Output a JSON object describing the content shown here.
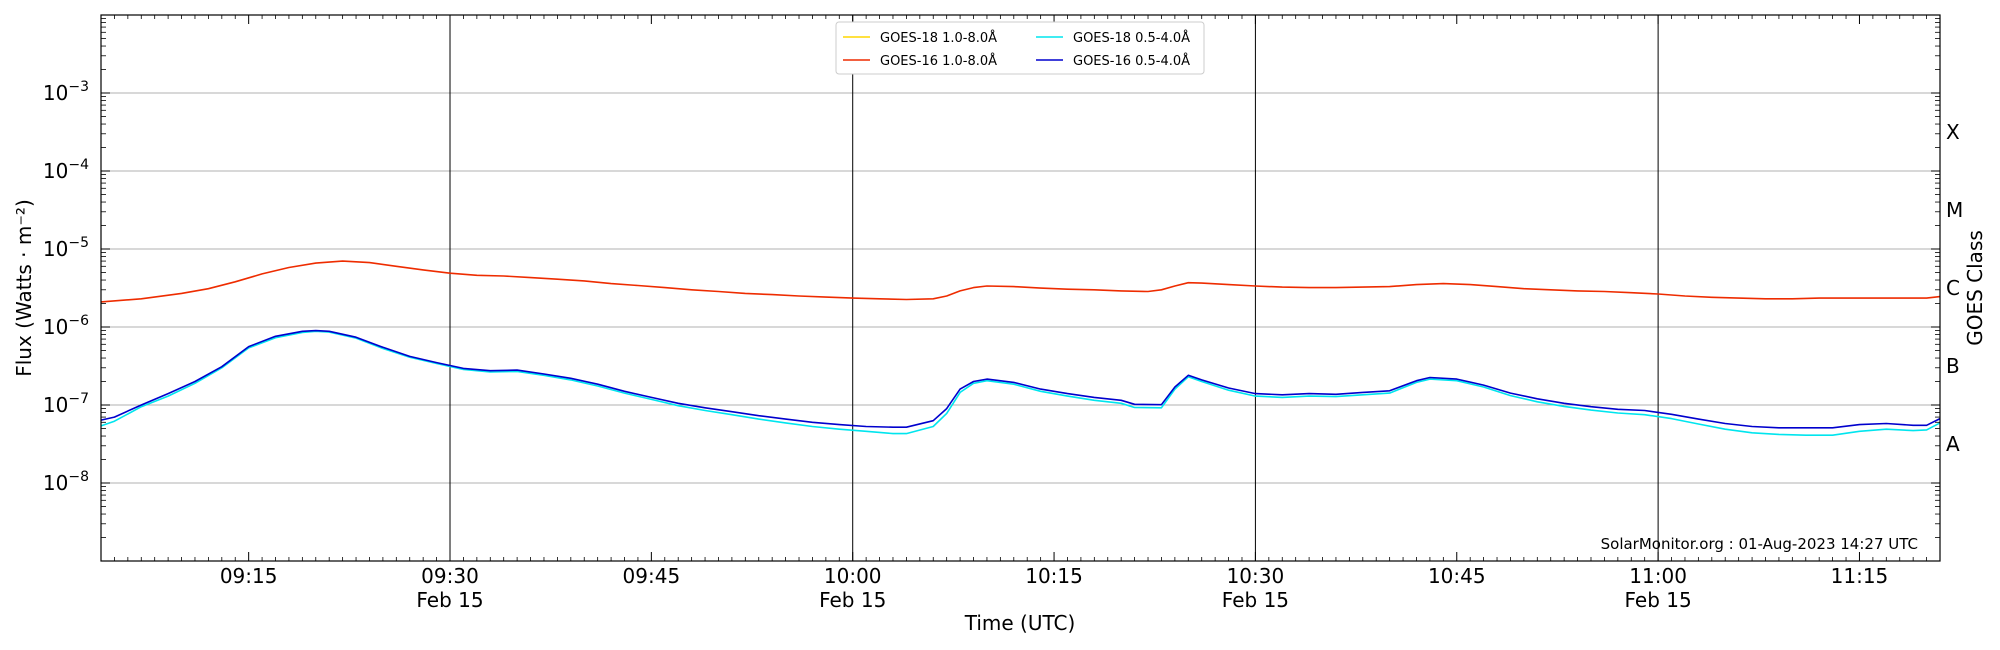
{
  "chart_data": {
    "type": "line",
    "ylabel": "Flux (Watts · m⁻²)",
    "xlabel": "Time (UTC)",
    "right_label": "GOES Class",
    "credit": "SolarMonitor.org : 01-Aug-2023 14:27 UTC",
    "y_scale": "log",
    "ylim": [
      1e-09,
      0.01
    ],
    "x_range_min": [
      544,
      681
    ],
    "y_ticks": [
      {
        "exp": -3,
        "label": "10",
        "sup": "−3"
      },
      {
        "exp": -4,
        "label": "10",
        "sup": "−4"
      },
      {
        "exp": -5,
        "label": "10",
        "sup": "−5"
      },
      {
        "exp": -6,
        "label": "10",
        "sup": "−6"
      },
      {
        "exp": -7,
        "label": "10",
        "sup": "−7"
      },
      {
        "exp": -8,
        "label": "10",
        "sup": "−8"
      }
    ],
    "x_ticks": [
      {
        "t": 555,
        "label": "09:15",
        "sub": ""
      },
      {
        "t": 570,
        "label": "09:30",
        "sub": "Feb 15"
      },
      {
        "t": 585,
        "label": "09:45",
        "sub": ""
      },
      {
        "t": 600,
        "label": "10:00",
        "sub": "Feb 15"
      },
      {
        "t": 615,
        "label": "10:15",
        "sub": ""
      },
      {
        "t": 630,
        "label": "10:30",
        "sub": "Feb 15"
      },
      {
        "t": 645,
        "label": "10:45",
        "sub": ""
      },
      {
        "t": 660,
        "label": "11:00",
        "sub": "Feb 15"
      },
      {
        "t": 675,
        "label": "11:15",
        "sub": ""
      }
    ],
    "vlines": [
      570,
      600,
      630,
      660
    ],
    "goes_classes": [
      {
        "label": "X",
        "exp": -3.5
      },
      {
        "label": "M",
        "exp": -4.5
      },
      {
        "label": "C",
        "exp": -5.5
      },
      {
        "label": "B",
        "exp": -6.5
      },
      {
        "label": "A",
        "exp": -7.5
      }
    ],
    "legend": [
      {
        "name": "GOES-18 1.0-8.0Å",
        "color": "#ffd700"
      },
      {
        "name": "GOES-18 0.5-4.0Å",
        "color": "#00e5ee"
      },
      {
        "name": "GOES-16 1.0-8.0Å",
        "color": "#ee2c00"
      },
      {
        "name": "GOES-16 0.5-4.0Å",
        "color": "#0000cd"
      }
    ],
    "series": [
      {
        "name": "GOES-16 1.0-8.0Å",
        "color": "#ee2c00",
        "x": [
          544,
          547,
          550,
          552,
          554,
          556,
          558,
          560,
          562,
          564,
          566,
          568,
          570,
          572,
          574,
          576,
          578,
          580,
          582,
          584,
          586,
          588,
          590,
          592,
          594,
          596,
          598,
          600,
          602,
          604,
          606,
          607,
          608,
          609,
          610,
          612,
          614,
          616,
          618,
          620,
          622,
          623,
          624,
          625,
          626,
          628,
          630,
          632,
          634,
          636,
          638,
          640,
          642,
          644,
          646,
          648,
          650,
          652,
          654,
          656,
          658,
          660,
          662,
          664,
          666,
          668,
          670,
          672,
          674,
          676,
          678,
          680,
          681
        ],
        "y": [
          2.1e-06,
          2.3e-06,
          2.7e-06,
          3.1e-06,
          3.8e-06,
          4.8e-06,
          5.8e-06,
          6.6e-06,
          7e-06,
          6.7e-06,
          6e-06,
          5.4e-06,
          4.9e-06,
          4.6e-06,
          4.5e-06,
          4.3e-06,
          4.1e-06,
          3.9e-06,
          3.6e-06,
          3.4e-06,
          3.2e-06,
          3e-06,
          2.85e-06,
          2.7e-06,
          2.6e-06,
          2.5e-06,
          2.42e-06,
          2.35e-06,
          2.3e-06,
          2.25e-06,
          2.3e-06,
          2.5e-06,
          2.9e-06,
          3.2e-06,
          3.35e-06,
          3.3e-06,
          3.15e-06,
          3.05e-06,
          3e-06,
          2.9e-06,
          2.85e-06,
          3e-06,
          3.35e-06,
          3.7e-06,
          3.65e-06,
          3.5e-06,
          3.35e-06,
          3.25e-06,
          3.2e-06,
          3.2e-06,
          3.25e-06,
          3.3e-06,
          3.5e-06,
          3.6e-06,
          3.5e-06,
          3.3e-06,
          3.1e-06,
          3e-06,
          2.9e-06,
          2.85e-06,
          2.75e-06,
          2.65e-06,
          2.5e-06,
          2.4e-06,
          2.35e-06,
          2.3e-06,
          2.3e-06,
          2.35e-06,
          2.35e-06,
          2.35e-06,
          2.35e-06,
          2.35e-06,
          2.45e-06
        ]
      },
      {
        "name": "GOES-18 0.5-4.0Å",
        "color": "#00e5ee",
        "x": [
          544,
          545,
          547,
          549,
          551,
          553,
          555,
          557,
          559,
          560,
          561,
          563,
          565,
          567,
          569,
          571,
          573,
          575,
          577,
          579,
          581,
          583,
          585,
          587,
          589,
          591,
          593,
          595,
          597,
          599,
          601,
          603,
          604,
          606,
          607,
          608,
          609,
          610,
          612,
          614,
          616,
          618,
          620,
          621,
          623,
          624,
          625,
          626,
          628,
          630,
          632,
          634,
          636,
          638,
          640,
          642,
          643,
          645,
          647,
          649,
          651,
          653,
          655,
          657,
          659,
          661,
          663,
          665,
          667,
          669,
          671,
          673,
          675,
          677,
          679,
          680,
          681
        ],
        "y": [
          5.4e-08,
          6.2e-08,
          9.5e-08,
          1.3e-07,
          1.9e-07,
          3e-07,
          5.4e-07,
          7.3e-07,
          8.5e-07,
          8.8e-07,
          8.6e-07,
          7.2e-07,
          5.3e-07,
          4.1e-07,
          3.4e-07,
          2.85e-07,
          2.65e-07,
          2.7e-07,
          2.4e-07,
          2.1e-07,
          1.75e-07,
          1.42e-07,
          1.18e-07,
          9.8e-08,
          8.5e-08,
          7.5e-08,
          6.6e-08,
          5.9e-08,
          5.3e-08,
          4.9e-08,
          4.6e-08,
          4.3e-08,
          4.3e-08,
          5.3e-08,
          7.8e-08,
          1.45e-07,
          1.9e-07,
          2.05e-07,
          1.85e-07,
          1.5e-07,
          1.3e-07,
          1.15e-07,
          1.05e-07,
          9.3e-08,
          9.2e-08,
          1.6e-07,
          2.3e-07,
          2e-07,
          1.55e-07,
          1.3e-07,
          1.25e-07,
          1.3e-07,
          1.28e-07,
          1.35e-07,
          1.42e-07,
          1.95e-07,
          2.15e-07,
          2.05e-07,
          1.7e-07,
          1.32e-07,
          1.1e-07,
          9.6e-08,
          8.6e-08,
          7.9e-08,
          7.5e-08,
          6.7e-08,
          5.7e-08,
          4.9e-08,
          4.4e-08,
          4.2e-08,
          4.1e-08,
          4.1e-08,
          4.6e-08,
          4.9e-08,
          4.7e-08,
          4.8e-08,
          5.9e-08
        ]
      },
      {
        "name": "GOES-16 0.5-4.0Å",
        "color": "#0000cd",
        "x": [
          544,
          545,
          547,
          549,
          551,
          553,
          555,
          557,
          559,
          560,
          561,
          563,
          565,
          567,
          569,
          571,
          573,
          575,
          577,
          579,
          581,
          583,
          585,
          587,
          589,
          591,
          593,
          595,
          597,
          599,
          601,
          603,
          604,
          606,
          607,
          608,
          609,
          610,
          612,
          614,
          616,
          618,
          620,
          621,
          623,
          624,
          625,
          626,
          628,
          630,
          632,
          634,
          636,
          638,
          640,
          642,
          643,
          645,
          647,
          649,
          651,
          653,
          655,
          657,
          659,
          661,
          663,
          665,
          667,
          669,
          671,
          673,
          675,
          677,
          679,
          680,
          681
        ],
        "y": [
          6.4e-08,
          7e-08,
          1e-07,
          1.4e-07,
          2e-07,
          3.1e-07,
          5.6e-07,
          7.6e-07,
          8.8e-07,
          9e-07,
          8.8e-07,
          7.4e-07,
          5.5e-07,
          4.2e-07,
          3.5e-07,
          2.95e-07,
          2.75e-07,
          2.8e-07,
          2.5e-07,
          2.2e-07,
          1.85e-07,
          1.5e-07,
          1.25e-07,
          1.05e-07,
          9.2e-08,
          8.2e-08,
          7.3e-08,
          6.6e-08,
          6e-08,
          5.6e-08,
          5.3e-08,
          5.2e-08,
          5.2e-08,
          6.3e-08,
          9e-08,
          1.6e-07,
          2e-07,
          2.15e-07,
          1.95e-07,
          1.6e-07,
          1.4e-07,
          1.25e-07,
          1.15e-07,
          1.02e-07,
          1.01e-07,
          1.7e-07,
          2.4e-07,
          2.1e-07,
          1.65e-07,
          1.4e-07,
          1.35e-07,
          1.4e-07,
          1.37e-07,
          1.45e-07,
          1.52e-07,
          2.05e-07,
          2.25e-07,
          2.15e-07,
          1.8e-07,
          1.42e-07,
          1.2e-07,
          1.05e-07,
          9.5e-08,
          8.8e-08,
          8.5e-08,
          7.6e-08,
          6.6e-08,
          5.8e-08,
          5.3e-08,
          5.1e-08,
          5.1e-08,
          5.1e-08,
          5.6e-08,
          5.8e-08,
          5.5e-08,
          5.5e-08,
          6.7e-08
        ]
      }
    ]
  }
}
